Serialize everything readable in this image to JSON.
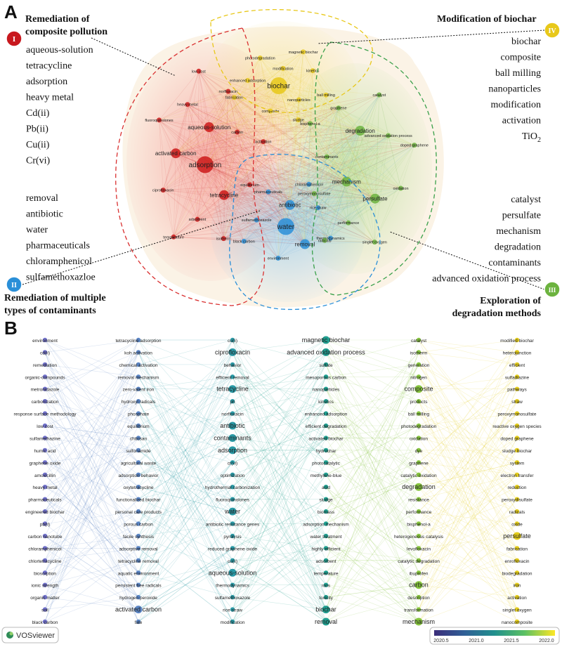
{
  "panel_a": {
    "label": "A",
    "clusters": [
      {
        "id": "I",
        "color": "#cc1a1a",
        "title_lines": [
          "Remediation of",
          "composite pollution"
        ],
        "keywords": [
          "aqueous-solution",
          "tetracycline",
          "adsorption",
          "heavy metal",
          "Cd(ii)",
          "Pb(ii)",
          "Cu(ii)",
          "Cr(vi)"
        ]
      },
      {
        "id": "II",
        "color": "#2a8fd8",
        "title_lines": [
          "Remediation of multiple",
          "types of contaminants"
        ],
        "keywords": [
          "removal",
          "antibiotic",
          "water",
          "pharmaceuticals",
          "chloramphenicol",
          "sulfamethoxazloe"
        ]
      },
      {
        "id": "III",
        "color": "#6cb33f",
        "title_lines": [
          "Exploration of",
          "degradation methods"
        ],
        "keywords": [
          "catalyst",
          "persulfate",
          "mechanism",
          "degradation",
          "contaminants",
          "advanced oxidation process"
        ]
      },
      {
        "id": "IV",
        "color": "#e8c81a",
        "title_lines": [
          "Modification of biochar"
        ],
        "keywords": [
          "biochar",
          "composite",
          "ball milling",
          "nanoparticles",
          "modification",
          "activation"
        ],
        "tio2": {
          "base": "TiO",
          "sub": "2"
        }
      }
    ],
    "network_nodes": [
      {
        "label": "biochar",
        "cluster": "IV",
        "weight": 3
      },
      {
        "label": "modification",
        "cluster": "IV",
        "weight": 1
      },
      {
        "label": "nanoparticles",
        "cluster": "IV",
        "weight": 1
      },
      {
        "label": "enhanced adsorption",
        "cluster": "IV",
        "weight": 1
      },
      {
        "label": "kinetics",
        "cluster": "IV",
        "weight": 1
      },
      {
        "label": "composite",
        "cluster": "IV",
        "weight": 1
      },
      {
        "label": "photodegradation",
        "cluster": "IV",
        "weight": 1
      },
      {
        "label": "ball milling",
        "cluster": "IV",
        "weight": 1
      },
      {
        "label": "fabrication",
        "cluster": "IV",
        "weight": 1
      },
      {
        "label": "magnetic biochar",
        "cluster": "IV",
        "weight": 1
      },
      {
        "label": "sludge",
        "cluster": "IV",
        "weight": 1
      },
      {
        "label": "adsorption",
        "cluster": "I",
        "weight": 3
      },
      {
        "label": "aqueous-solution",
        "cluster": "I",
        "weight": 2
      },
      {
        "label": "tetracycline",
        "cluster": "I",
        "weight": 2
      },
      {
        "label": "activated carbon",
        "cluster": "I",
        "weight": 2
      },
      {
        "label": "carbon",
        "cluster": "I",
        "weight": 1
      },
      {
        "label": "adsorbent",
        "cluster": "I",
        "weight": 1
      },
      {
        "label": "heavy metal",
        "cluster": "I",
        "weight": 1
      },
      {
        "label": "equilibrium",
        "cluster": "I",
        "weight": 1
      },
      {
        "label": "ciprofloxacin",
        "cluster": "I",
        "weight": 1
      },
      {
        "label": "norfloxacin",
        "cluster": "I",
        "weight": 1
      },
      {
        "label": "isotherm",
        "cluster": "I",
        "weight": 1
      },
      {
        "label": "fluoroquinolones",
        "cluster": "I",
        "weight": 1
      },
      {
        "label": "activation",
        "cluster": "I",
        "weight": 1
      },
      {
        "label": "temperature",
        "cluster": "I",
        "weight": 1
      },
      {
        "label": "low cost",
        "cluster": "I",
        "weight": 1
      },
      {
        "label": "water",
        "cluster": "II",
        "weight": 3
      },
      {
        "label": "antibiotic",
        "cluster": "II",
        "weight": 2
      },
      {
        "label": "removal",
        "cluster": "II",
        "weight": 2
      },
      {
        "label": "sulfamethoxazole",
        "cluster": "II",
        "weight": 1
      },
      {
        "label": "rice straw",
        "cluster": "II",
        "weight": 1
      },
      {
        "label": "environment",
        "cluster": "II",
        "weight": 1
      },
      {
        "label": "pharmaceuticals",
        "cluster": "II",
        "weight": 1
      },
      {
        "label": "thermodynamics",
        "cluster": "II",
        "weight": 1
      },
      {
        "label": "black carbon",
        "cluster": "II",
        "weight": 1
      },
      {
        "label": "chloramphenicol",
        "cluster": "II",
        "weight": 1
      },
      {
        "label": "mechanism",
        "cluster": "III",
        "weight": 2
      },
      {
        "label": "degradation",
        "cluster": "III",
        "weight": 2
      },
      {
        "label": "persulfate",
        "cluster": "III",
        "weight": 2
      },
      {
        "label": "contaminants",
        "cluster": "III",
        "weight": 1
      },
      {
        "label": "advanced oxidation process",
        "cluster": "III",
        "weight": 1
      },
      {
        "label": "performance",
        "cluster": "III",
        "weight": 1
      },
      {
        "label": "graphene",
        "cluster": "III",
        "weight": 1
      },
      {
        "label": "oxidation",
        "cluster": "III",
        "weight": 1
      },
      {
        "label": "peroxymonosulfate",
        "cluster": "III",
        "weight": 1
      },
      {
        "label": "catalyst",
        "cluster": "III",
        "weight": 1
      },
      {
        "label": "singlet oxygen",
        "cluster": "III",
        "weight": 1
      },
      {
        "label": "bisphenol-a",
        "cluster": "III",
        "weight": 1
      },
      {
        "label": "doped graphene",
        "cluster": "III",
        "weight": 1
      },
      {
        "label": "radicals",
        "cluster": "III",
        "weight": 1
      }
    ]
  },
  "panel_b": {
    "label": "B",
    "columns": [
      [
        "environment",
        "cd(ii)",
        "remediation",
        "organic-compounds",
        "metronidazole",
        "carbonization",
        "response surface methodology",
        "low cost",
        "sulfamethazine",
        "humic acid",
        "graphene oxide",
        "amoxicillin",
        "heavy metal",
        "pharmaceuticals",
        "engineered biochar",
        "pb(ii)",
        "carbon nanotube",
        "chloramphenicol",
        "chlortetracycline",
        "biosorption",
        "ionic strength",
        "organic matter",
        "soil",
        "black carbon"
      ],
      [
        "tetracycline adsorption",
        "koh activation",
        "chemical activation",
        "removal mechanism",
        "zero-valent iron",
        "hydroxyl radicals",
        "phosphate",
        "equilibrium",
        "chitosan",
        "sulfonamide",
        "agricultural waste",
        "adsorption behavior",
        "oxytetracycline",
        "functionalized biochar",
        "personal care products",
        "porous carbon",
        "facile synthesis",
        "adsorptive removal",
        "tetracycline removal",
        "aquatic environment",
        "persistent free radicals",
        "hydrogen peroxide",
        "activated carbon",
        "fate"
      ],
      [
        "cu(ii)",
        "ciprofloxacin",
        "behavior",
        "efficient removal",
        "tetracycline",
        "ph",
        "norfloxacin",
        "antibiotic",
        "contaminants",
        "adsorption",
        "cr(vi)",
        "optimization",
        "hydrothermal carbonization",
        "fluoroquinolones",
        "water",
        "antibiotic resistance genes",
        "pyrolysis",
        "reduced graphene oxide",
        "cu(ii)",
        "aqueous-solution",
        "thermodynamics",
        "sulfamethoxazole",
        "rice straw",
        "modification"
      ],
      [
        "magnetic biochar",
        "advanced oxidation process",
        "sulfate",
        "mesoporous carbon",
        "nanoparticles",
        "kinetics",
        "enhanced adsorption",
        "efficient degradation",
        "activated biochar",
        "hydrochar",
        "photocatalytic",
        "methylene-blue",
        "acid",
        "sludge",
        "biomass",
        "adsorption mechanism",
        "water treatment",
        "highly efficient",
        "adsorbent",
        "temperature",
        "ions",
        "toxicity",
        "biochar",
        "removal"
      ],
      [
        "catalyst",
        "isotherm",
        "generation",
        "nitrogen",
        "composite",
        "products",
        "ball milling",
        "photodegradation",
        "oxidation",
        "dye",
        "graphene",
        "catalytic oxidation",
        "degradation",
        "resistance",
        "performance",
        "bisphenol-a",
        "heterogeneous catalysis",
        "levofloxacin",
        "catalytic degradation",
        "ibuprofen",
        "carbon",
        "description",
        "transformation",
        "mechanism"
      ],
      [
        "modified biochar",
        "heterojunction",
        "efficient",
        "sulfadiazine",
        "pathways",
        "straw",
        "peroxymonosulfate",
        "reactive oxygen species",
        "doped graphene",
        "sludge biochar",
        "system",
        "electron transfer",
        "reduction",
        "peroxydisulfate",
        "radicals",
        "oxide",
        "persulfate",
        "fabrication",
        "enrofloxacin",
        "biodegradation",
        "iron",
        "activation",
        "singlet oxygen",
        "nanocomposite"
      ]
    ],
    "column_colors": [
      "#6f6fc8",
      "#5a84c4",
      "#2a9aa6",
      "#1f9e8f",
      "#86c53d",
      "#e3cc1a"
    ],
    "emphasized": [
      "tetracycline",
      "antibiotic",
      "adsorption",
      "water",
      "biochar",
      "removal",
      "degradation",
      "persulfate",
      "composite",
      "contaminants",
      "advanced oxidation process",
      "magnetic biochar",
      "mechanism",
      "carbon",
      "activated carbon",
      "aqueous-solution",
      "ciprofloxacin"
    ],
    "colorbar": {
      "ticks": [
        "2020.5",
        "2021.0",
        "2021.5",
        "2022.0"
      ],
      "stops": [
        "#3b2d7a",
        "#2f5f96",
        "#21908d",
        "#5cc163",
        "#fde725"
      ]
    },
    "logo_text": "VOSviewer"
  }
}
